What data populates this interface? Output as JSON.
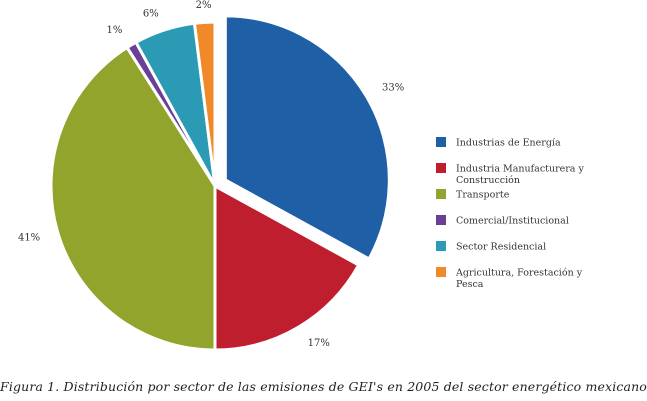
{
  "caption": "Figura 1. Distribución por sector de las emisiones de GEI's en 2005 del sector energético mexicano",
  "chart_data": {
    "type": "pie",
    "legend_position": "right",
    "slices": [
      {
        "name": "Industrias de Energía",
        "legend_lines": [
          "Industrias de Energía"
        ],
        "value": 33,
        "label": "33%",
        "color": "#1f5fa6",
        "exploded": true
      },
      {
        "name": "Industria Manufacturera y Construcción",
        "legend_lines": [
          "Industria Manufacturera y",
          "Construcción"
        ],
        "value": 17,
        "label": "17%",
        "color": "#be1e2d",
        "exploded": false
      },
      {
        "name": "Transporte",
        "legend_lines": [
          "Transporte"
        ],
        "value": 41,
        "label": "41%",
        "color": "#93a42c",
        "exploded": false
      },
      {
        "name": "Comercial/Institucional",
        "legend_lines": [
          "Comercial/Institucional"
        ],
        "value": 1,
        "label": "1%",
        "color": "#6a3f98",
        "exploded": false
      },
      {
        "name": "Sector Residencial",
        "legend_lines": [
          "Sector Residencial"
        ],
        "value": 6,
        "label": "6%",
        "color": "#2b9bb5",
        "exploded": false
      },
      {
        "name": "Agricultura, Forestación y Pesca",
        "legend_lines": [
          "Agricultura, Forestación y",
          "Pesca"
        ],
        "value": 2,
        "label": "2%",
        "color": "#f0892a",
        "exploded": false
      }
    ]
  }
}
